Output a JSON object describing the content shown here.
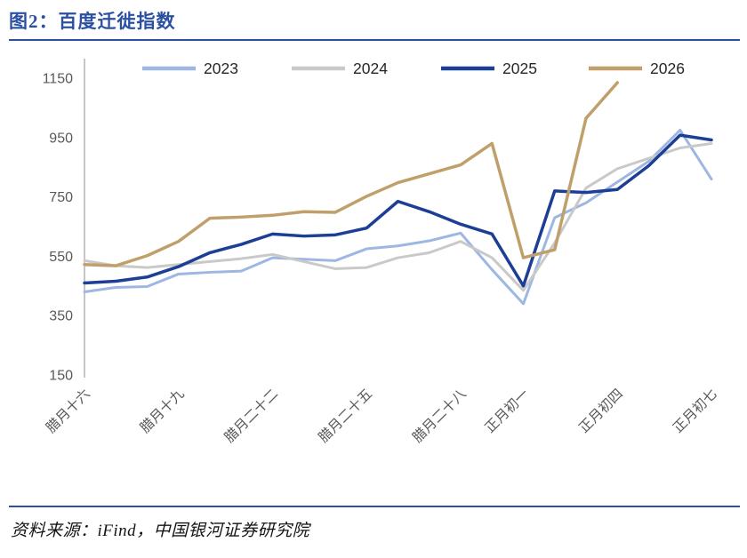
{
  "header": {
    "title": "图2：百度迁徙指数"
  },
  "footer": {
    "source": "资料来源：iFind，中国银河证券研究院"
  },
  "colors": {
    "accent_blue": "#2B50A2",
    "axis_text": "#595959",
    "legend_text": "#262626"
  },
  "chart_data": {
    "type": "line",
    "title": "百度迁徙指数",
    "xlabel": "",
    "ylabel": "",
    "ylim": [
      150,
      1150
    ],
    "y_ticks": [
      150,
      350,
      550,
      750,
      950,
      1150
    ],
    "n_points": 21,
    "x_labels": [
      "腊月十六",
      "腊月十九",
      "腊月二十二",
      "腊月二十五",
      "腊月二十八",
      "正月初一",
      "正月初四",
      "正月初七"
    ],
    "x_tick_indices": [
      0,
      3,
      6,
      9,
      12,
      14,
      17,
      20
    ],
    "grid": false,
    "legend_position": "top",
    "series": [
      {
        "name": "2023",
        "color": "#9DB7E2",
        "width": 3,
        "values": [
          430,
          445,
          448,
          490,
          496,
          500,
          545,
          540,
          535,
          575,
          585,
          602,
          628,
          505,
          390,
          680,
          730,
          800,
          870,
          975,
          810
        ]
      },
      {
        "name": "2024",
        "color": "#C9C9C9",
        "width": 3,
        "values": [
          535,
          518,
          512,
          522,
          532,
          542,
          556,
          532,
          508,
          512,
          545,
          562,
          600,
          545,
          435,
          595,
          780,
          845,
          880,
          915,
          930
        ]
      },
      {
        "name": "2025",
        "color": "#1C3E94",
        "width": 3.5,
        "values": [
          460,
          466,
          480,
          515,
          562,
          590,
          625,
          618,
          622,
          645,
          735,
          700,
          658,
          625,
          450,
          770,
          765,
          775,
          855,
          958,
          942
        ]
      },
      {
        "name": "2026",
        "color": "#C0A06A",
        "width": 3.5,
        "values": [
          522,
          518,
          552,
          600,
          678,
          682,
          688,
          700,
          698,
          752,
          798,
          828,
          858,
          930,
          545,
          572,
          1015,
          1135,
          null,
          null,
          null
        ]
      }
    ]
  }
}
